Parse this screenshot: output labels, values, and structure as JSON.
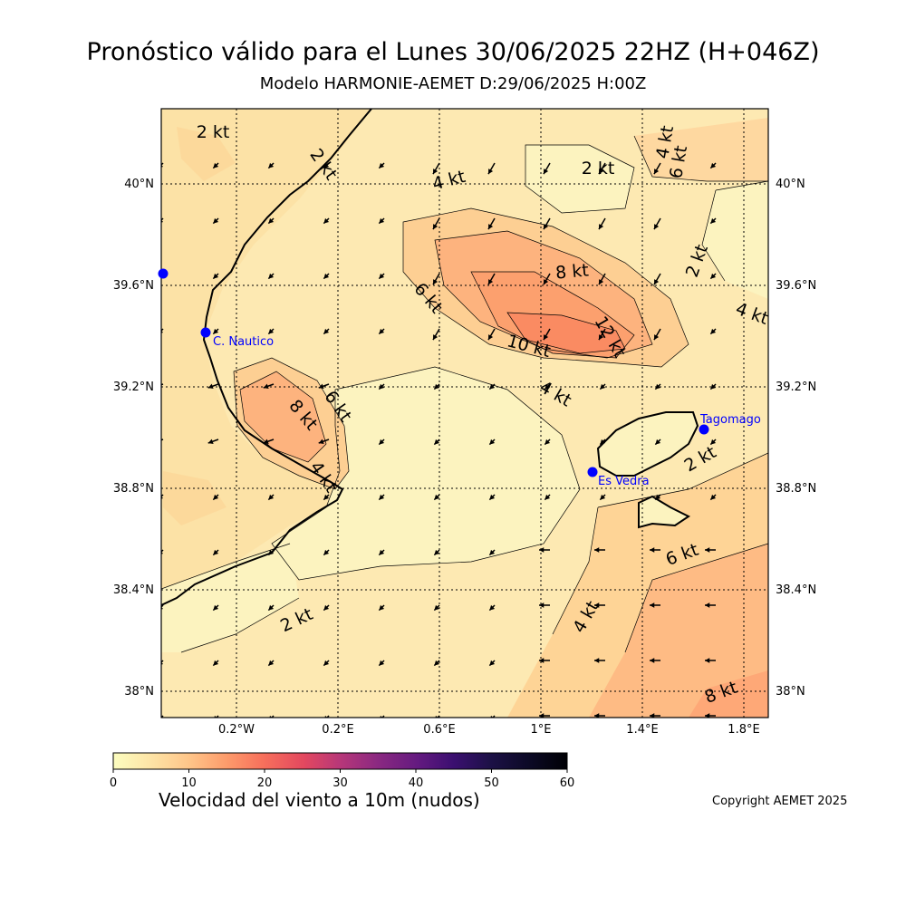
{
  "title": "Pronóstico válido para el Lunes 30/06/2025 22HZ (H+046Z)",
  "subtitle": "Modelo HARMONIE-AEMET D:29/06/2025 H:00Z",
  "map": {
    "lat_ticks": [
      "40°N",
      "39.6°N",
      "39.2°N",
      "38.8°N",
      "38.4°N",
      "38°N"
    ],
    "lon_ticks": [
      "0.2°W",
      "0.2°E",
      "0.6°E",
      "1°E",
      "1.4°E",
      "1.8°E"
    ],
    "contour_labels": [
      "2 kt",
      "2 kt",
      "4 kt",
      "2 kt",
      "4 kt",
      "6 kt",
      "2 kt",
      "8 kt",
      "6 kt",
      "4 kt",
      "10 kt",
      "12 kt",
      "4 kt",
      "6 kt",
      "8 kt",
      "4 kt",
      "2 kt",
      "6 kt",
      "2 kt",
      "4 kt",
      "8 kt"
    ],
    "stations": [
      {
        "name": "C. Nautico"
      },
      {
        "name": "Es Vedra"
      },
      {
        "name": "Tagomago"
      },
      {
        "name": ""
      }
    ],
    "station_color": "#0000ff"
  },
  "colorbar": {
    "min": 0,
    "max": 60,
    "ticks": [
      "0",
      "10",
      "20",
      "30",
      "40",
      "50",
      "60"
    ],
    "colormap": "magma_r",
    "label": "Velocidad del viento a 10m (nudos)"
  },
  "copyright": "Copyright AEMET 2025"
}
